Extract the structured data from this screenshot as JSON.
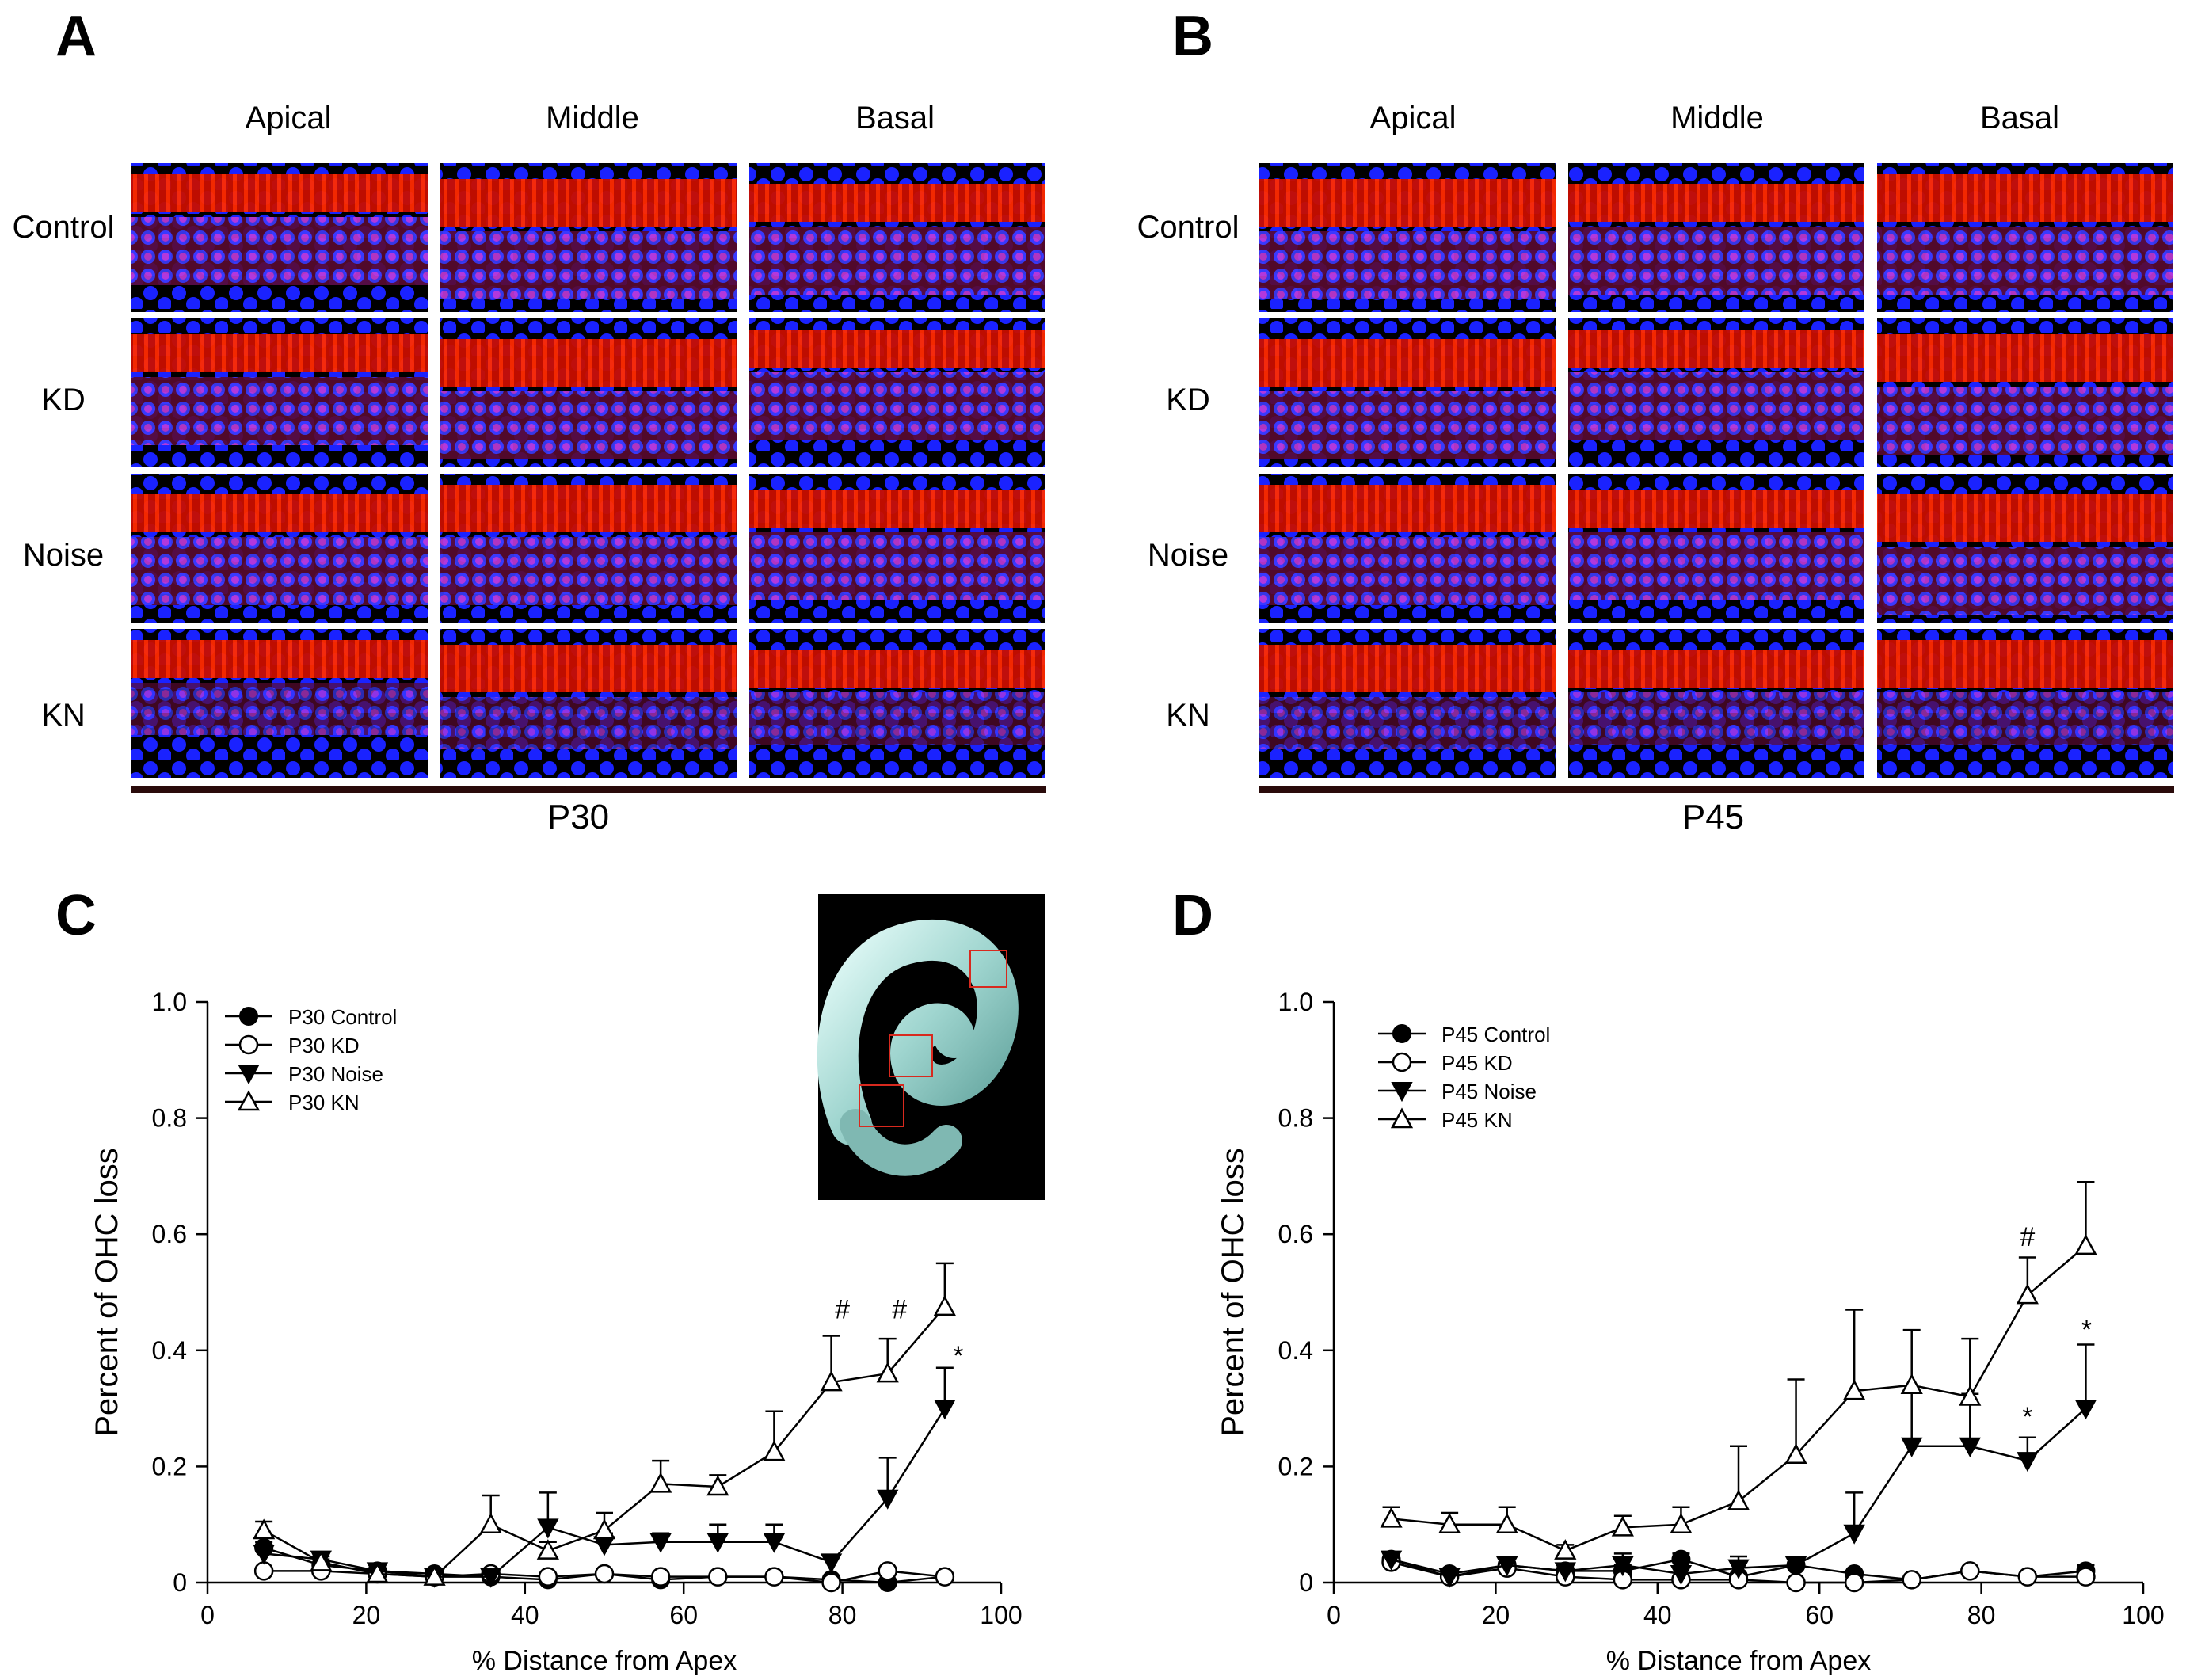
{
  "panel_letters": {
    "a": "A",
    "b": "B",
    "c": "C",
    "d": "D"
  },
  "micrographs": {
    "columns": [
      "Apical",
      "Middle",
      "Basal"
    ],
    "rows": [
      "Control",
      "KD",
      "Noise",
      "KN"
    ],
    "panel_a_age": "P30",
    "panel_b_age": "P45",
    "colors": {
      "actin": "#ff1a00",
      "nuclei": "#1a22ff",
      "background": "#000000"
    }
  },
  "chart_data": [
    {
      "panel": "C",
      "type": "line",
      "xlabel": "% Distance from Apex",
      "ylabel": "Percent of OHC loss",
      "xlim": [
        0,
        100
      ],
      "ylim": [
        0,
        1.0
      ],
      "xticks": [
        0,
        20,
        40,
        60,
        80,
        100
      ],
      "xtick_labels": [
        "0",
        "20",
        "40",
        "60",
        "80",
        "100"
      ],
      "yticks": [
        0,
        0.2,
        0.4,
        0.6,
        0.8,
        1.0
      ],
      "ytick_labels": [
        "0",
        "0.2",
        "0.4",
        "0.6",
        "0.8",
        "1.0"
      ],
      "legend_position": "top-left",
      "x": [
        7.1,
        14.3,
        21.4,
        28.6,
        35.7,
        42.9,
        50.0,
        57.1,
        64.3,
        71.4,
        78.6,
        85.7,
        92.9
      ],
      "series": [
        {
          "name": "P30 Control",
          "marker": "filled-circle",
          "values": [
            0.06,
            0.03,
            0.02,
            0.015,
            0.01,
            0.005,
            0.015,
            0.005,
            0.01,
            0.01,
            0.005,
            0.0,
            0.01
          ],
          "errors": [
            0.01,
            0.01,
            0.005,
            0.005,
            0.005,
            0.005,
            0.005,
            0.005,
            0.005,
            0.005,
            0.005,
            0.0,
            0.005
          ]
        },
        {
          "name": "P30 KD",
          "marker": "open-circle",
          "values": [
            0.02,
            0.02,
            0.015,
            0.01,
            0.015,
            0.01,
            0.015,
            0.01,
            0.01,
            0.01,
            0.0,
            0.02,
            0.01
          ],
          "errors": [
            0.005,
            0.005,
            0.005,
            0.005,
            0.005,
            0.005,
            0.005,
            0.005,
            0.005,
            0.005,
            0.0,
            0.005,
            0.005
          ]
        },
        {
          "name": "P30 Noise",
          "marker": "filled-down-triangle",
          "values": [
            0.05,
            0.04,
            0.02,
            0.01,
            0.01,
            0.095,
            0.065,
            0.07,
            0.07,
            0.07,
            0.035,
            0.145,
            0.3
          ],
          "errors": [
            0.015,
            0.01,
            0.005,
            0.005,
            0.005,
            0.06,
            0.02,
            0.015,
            0.03,
            0.03,
            0.01,
            0.07,
            0.07
          ]
        },
        {
          "name": "P30 KN",
          "marker": "open-up-triangle",
          "values": [
            0.09,
            0.035,
            0.015,
            0.01,
            0.1,
            0.055,
            0.09,
            0.17,
            0.165,
            0.225,
            0.345,
            0.36,
            0.475
          ],
          "errors": [
            0.015,
            0.01,
            0.005,
            0.005,
            0.05,
            0.015,
            0.03,
            0.04,
            0.02,
            0.07,
            0.08,
            0.06,
            0.075
          ]
        }
      ],
      "annotations": [
        {
          "text": "#",
          "x": 80,
          "y": 0.455
        },
        {
          "text": "#",
          "x": 87.2,
          "y": 0.455
        },
        {
          "text": "*",
          "x": 94.6,
          "y": 0.375
        }
      ],
      "inset": {
        "description": "cochlea whole mount photo",
        "box_color": "#d8291e"
      }
    },
    {
      "panel": "D",
      "type": "line",
      "xlabel": "% Distance from Apex",
      "ylabel": "Percent of OHC loss",
      "xlim": [
        0,
        100
      ],
      "ylim": [
        0,
        1.0
      ],
      "xticks": [
        0,
        20,
        40,
        60,
        80,
        100
      ],
      "xtick_labels": [
        "0",
        "20",
        "40",
        "60",
        "80",
        "100"
      ],
      "yticks": [
        0,
        0.2,
        0.4,
        0.6,
        0.8,
        1.0
      ],
      "ytick_labels": [
        "0",
        "0.2",
        "0.4",
        "0.6",
        "0.8",
        "1.0"
      ],
      "legend_position": "top-left",
      "x": [
        7.1,
        14.3,
        21.4,
        28.6,
        35.7,
        42.9,
        50.0,
        57.1,
        64.3,
        71.4,
        78.6,
        85.7,
        92.9
      ],
      "series": [
        {
          "name": "P45 Control",
          "marker": "filled-circle",
          "values": [
            0.04,
            0.015,
            0.03,
            0.02,
            0.02,
            0.04,
            0.01,
            0.03,
            0.015,
            0.005,
            0.02,
            0.01,
            0.02
          ],
          "errors": [
            0.01,
            0.005,
            0.01,
            0.01,
            0.01,
            0.01,
            0.005,
            0.01,
            0.005,
            0.005,
            0.005,
            0.005,
            0.01
          ]
        },
        {
          "name": "P45 KD",
          "marker": "open-circle",
          "values": [
            0.035,
            0.01,
            0.025,
            0.01,
            0.005,
            0.005,
            0.005,
            0.0,
            0.0,
            0.005,
            0.02,
            0.01,
            0.01
          ],
          "errors": [
            0.01,
            0.005,
            0.01,
            0.005,
            0.005,
            0.005,
            0.005,
            0.0,
            0.0,
            0.005,
            0.005,
            0.005,
            0.005
          ]
        },
        {
          "name": "P45 Noise",
          "marker": "filled-down-triangle",
          "values": [
            0.04,
            0.01,
            0.03,
            0.02,
            0.03,
            0.015,
            0.025,
            0.03,
            0.085,
            0.235,
            0.235,
            0.21,
            0.3
          ],
          "errors": [
            0.01,
            0.005,
            0.01,
            0.01,
            0.02,
            0.02,
            0.02,
            0.01,
            0.07,
            0.095,
            0.09,
            0.04,
            0.11
          ]
        },
        {
          "name": "P45 KN",
          "marker": "open-up-triangle",
          "values": [
            0.11,
            0.1,
            0.1,
            0.055,
            0.095,
            0.1,
            0.14,
            0.22,
            0.33,
            0.34,
            0.32,
            0.495,
            0.58
          ],
          "errors": [
            0.02,
            0.02,
            0.03,
            0.01,
            0.02,
            0.03,
            0.095,
            0.13,
            0.14,
            0.095,
            0.1,
            0.065,
            0.11
          ]
        }
      ],
      "annotations": [
        {
          "text": "#",
          "x": 85.7,
          "y": 0.58
        },
        {
          "text": "*",
          "x": 85.7,
          "y": 0.27
        },
        {
          "text": "*",
          "x": 93.0,
          "y": 0.42
        }
      ]
    }
  ]
}
